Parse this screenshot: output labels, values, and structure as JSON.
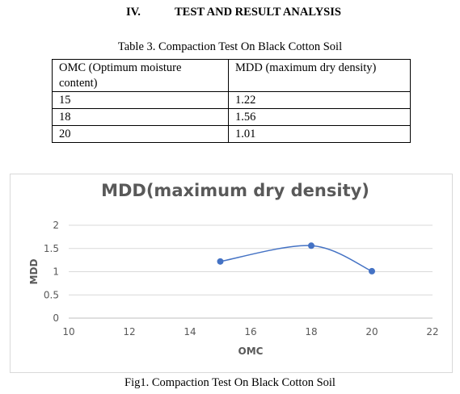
{
  "section": {
    "number": "IV.",
    "title": "TEST AND RESULT ANALYSIS"
  },
  "table": {
    "caption": "Table 3. Compaction Test On Black Cotton Soil",
    "headers": [
      "OMC (Optimum moisture content)",
      "MDD (maximum dry density)"
    ],
    "rows": [
      [
        "15",
        "1.22"
      ],
      [
        "18",
        "1.56"
      ],
      [
        "20",
        "1.01"
      ]
    ]
  },
  "figure_caption": "Fig1. Compaction Test On Black Cotton Soil",
  "chart_data": {
    "type": "scatter",
    "smooth_line": true,
    "title": "MDD(maximum dry density)",
    "xlabel": "OMC",
    "ylabel": "MDD",
    "x": [
      15,
      18,
      20
    ],
    "y": [
      1.22,
      1.56,
      1.01
    ],
    "xlim": [
      10,
      22
    ],
    "ylim": [
      0,
      2
    ],
    "xticks": [
      "10",
      "12",
      "14",
      "16",
      "18",
      "20",
      "22"
    ],
    "yticks": [
      "0",
      "0.5",
      "1",
      "1.5",
      "2"
    ],
    "grid": "horizontal",
    "legend": "none",
    "colors": {
      "series": "#4472c4",
      "grid": "#d9d9d9",
      "text": "#595959"
    }
  }
}
